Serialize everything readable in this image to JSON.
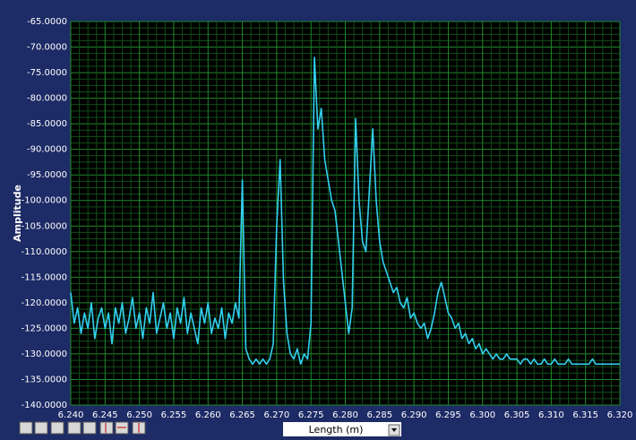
{
  "chart_data": {
    "type": "line",
    "ylabel": "Amplitude",
    "xlabel": "Length (m)",
    "grid": true,
    "minor_grid": true,
    "x": [
      6.24,
      6.2405,
      6.241,
      6.2415,
      6.242,
      6.2425,
      6.243,
      6.2435,
      6.244,
      6.2445,
      6.245,
      6.2455,
      6.246,
      6.2465,
      6.247,
      6.2475,
      6.248,
      6.2485,
      6.249,
      6.2495,
      6.25,
      6.2505,
      6.251,
      6.2515,
      6.252,
      6.2525,
      6.253,
      6.2535,
      6.254,
      6.2545,
      6.255,
      6.2555,
      6.256,
      6.2565,
      6.257,
      6.2575,
      6.258,
      6.2585,
      6.259,
      6.2595,
      6.26,
      6.2605,
      6.261,
      6.2615,
      6.262,
      6.2625,
      6.263,
      6.2635,
      6.264,
      6.2645,
      6.265,
      6.2655,
      6.266,
      6.2665,
      6.267,
      6.2675,
      6.268,
      6.2685,
      6.269,
      6.2695,
      6.27,
      6.2705,
      6.271,
      6.2715,
      6.272,
      6.2725,
      6.273,
      6.2735,
      6.274,
      6.2745,
      6.275,
      6.2755,
      6.276,
      6.2765,
      6.277,
      6.2775,
      6.278,
      6.2785,
      6.279,
      6.2795,
      6.28,
      6.2805,
      6.281,
      6.2815,
      6.282,
      6.2825,
      6.283,
      6.2835,
      6.284,
      6.2845,
      6.285,
      6.2855,
      6.286,
      6.2865,
      6.287,
      6.2875,
      6.288,
      6.2885,
      6.289,
      6.2895,
      6.29,
      6.2905,
      6.291,
      6.2915,
      6.292,
      6.2925,
      6.293,
      6.2935,
      6.294,
      6.2945,
      6.295,
      6.2955,
      6.296,
      6.2965,
      6.297,
      6.2975,
      6.298,
      6.2985,
      6.299,
      6.2995,
      6.3,
      6.3005,
      6.301,
      6.3015,
      6.302,
      6.3025,
      6.303,
      6.3035,
      6.304,
      6.3045,
      6.305,
      6.3055,
      6.306,
      6.3065,
      6.307,
      6.3075,
      6.308,
      6.3085,
      6.309,
      6.3095,
      6.31,
      6.3105,
      6.311,
      6.3115,
      6.312,
      6.3125,
      6.313,
      6.3135,
      6.314,
      6.3145,
      6.315,
      6.3155,
      6.316,
      6.3165,
      6.317,
      6.3175,
      6.318,
      6.3185,
      6.319,
      6.3195,
      6.32
    ],
    "series": [
      {
        "color": "#33d0f0",
        "values": [
          -118,
          -124,
          -121,
          -126,
          -122,
          -125,
          -120,
          -127,
          -123,
          -121,
          -125,
          -122,
          -128,
          -121,
          -124,
          -120,
          -126,
          -123,
          -119,
          -125,
          -122,
          -127,
          -121,
          -124,
          -118,
          -126,
          -123,
          -120,
          -125,
          -122,
          -127,
          -121,
          -124,
          -119,
          -126,
          -122,
          -125,
          -128,
          -121,
          -124,
          -120,
          -126,
          -123,
          -125,
          -121,
          -127,
          -122,
          -124,
          -120,
          -123,
          -96,
          -129,
          -131,
          -132,
          -131,
          -132,
          -131,
          -132,
          -131,
          -128,
          -105,
          -92,
          -116,
          -126,
          -130,
          -131,
          -129,
          -132,
          -130,
          -131,
          -124,
          -72,
          -86,
          -82,
          -92,
          -96,
          -100,
          -102,
          -108,
          -114,
          -120,
          -126,
          -121,
          -84,
          -100,
          -108,
          -110,
          -98,
          -86,
          -100,
          -108,
          -112,
          -114,
          -116,
          -118,
          -117,
          -120,
          -121,
          -119,
          -123,
          -122,
          -124,
          -125,
          -124,
          -127,
          -125,
          -122,
          -118,
          -116,
          -119,
          -122,
          -123,
          -125,
          -124,
          -127,
          -126,
          -128,
          -127,
          -129,
          -128,
          -130,
          -129,
          -130,
          -131,
          -130,
          -131,
          -131,
          -130,
          -131,
          -131,
          -131,
          -132,
          -131,
          -131,
          -132,
          -131,
          -132,
          -132,
          -131,
          -132,
          -132,
          -131,
          -132,
          -132,
          -132,
          -131,
          -132,
          -132,
          -132,
          -132,
          -132,
          -132,
          -131,
          -132,
          -132,
          -132,
          -132,
          -132,
          -132,
          -132,
          -132
        ]
      }
    ],
    "xlim": [
      6.24,
      6.32
    ],
    "xticks": [
      {
        "value": 6.24,
        "label": "6.240"
      },
      {
        "value": 6.245,
        "label": "6.245"
      },
      {
        "value": 6.25,
        "label": "6.250"
      },
      {
        "value": 6.255,
        "label": "6.255"
      },
      {
        "value": 6.26,
        "label": "6.260"
      },
      {
        "value": 6.265,
        "label": "6.265"
      },
      {
        "value": 6.27,
        "label": "6.270"
      },
      {
        "value": 6.275,
        "label": "6.275"
      },
      {
        "value": 6.28,
        "label": "6.280"
      },
      {
        "value": 6.285,
        "label": "6.285"
      },
      {
        "value": 6.29,
        "label": "6.290"
      },
      {
        "value": 6.295,
        "label": "6.295"
      },
      {
        "value": 6.3,
        "label": "6.300"
      },
      {
        "value": 6.305,
        "label": "6.305"
      },
      {
        "value": 6.31,
        "label": "6.310"
      },
      {
        "value": 6.315,
        "label": "6.315"
      },
      {
        "value": 6.32,
        "label": "6.320"
      }
    ],
    "ylim": [
      -140,
      -65
    ],
    "yticks": [
      {
        "value": -65,
        "label": "-65.0000"
      },
      {
        "value": -70,
        "label": "-70.0000"
      },
      {
        "value": -75,
        "label": "-75.0000"
      },
      {
        "value": -80,
        "label": "-80.0000"
      },
      {
        "value": -85,
        "label": "-85.0000"
      },
      {
        "value": -90,
        "label": "-90.0000"
      },
      {
        "value": -95,
        "label": "-95.0000"
      },
      {
        "value": -100,
        "label": "-100.0000"
      },
      {
        "value": -105,
        "label": "-105.0000"
      },
      {
        "value": -110,
        "label": "-110.0000"
      },
      {
        "value": -115,
        "label": "-115.0000"
      },
      {
        "value": -120,
        "label": "-120.0000"
      },
      {
        "value": -125,
        "label": "-125.0000"
      },
      {
        "value": -130,
        "label": "-130.0000"
      },
      {
        "value": -135,
        "label": "-135.0000"
      },
      {
        "value": -140,
        "label": "-140.0000"
      }
    ]
  }
}
